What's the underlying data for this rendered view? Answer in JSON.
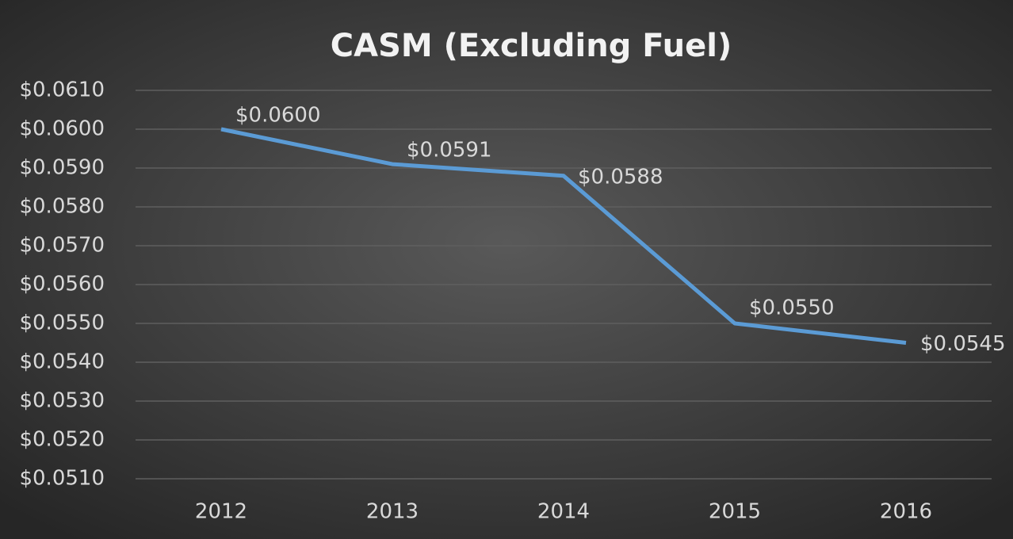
{
  "chart_data": {
    "type": "line",
    "title": "CASM (Excluding Fuel)",
    "categories": [
      "2012",
      "2013",
      "2014",
      "2015",
      "2016"
    ],
    "series": [
      {
        "color": "#5b9bd5",
        "values": [
          0.06,
          0.0591,
          0.0588,
          0.055,
          0.0545
        ],
        "value_labels": [
          "$0.0600",
          "$0.0591",
          "$0.0588",
          "$0.0550",
          "$0.0545"
        ]
      }
    ],
    "ylim": [
      0.051,
      0.061
    ],
    "yticks": [
      {
        "value": 0.051,
        "label": "$0.0510"
      },
      {
        "value": 0.052,
        "label": "$0.0520"
      },
      {
        "value": 0.053,
        "label": "$0.0530"
      },
      {
        "value": 0.054,
        "label": "$0.0540"
      },
      {
        "value": 0.055,
        "label": "$0.0550"
      },
      {
        "value": 0.056,
        "label": "$0.0560"
      },
      {
        "value": 0.057,
        "label": "$0.0570"
      },
      {
        "value": 0.058,
        "label": "$0.0580"
      },
      {
        "value": 0.059,
        "label": "$0.0590"
      },
      {
        "value": 0.06,
        "label": "$0.0600"
      },
      {
        "value": 0.061,
        "label": "$0.0610"
      }
    ],
    "grid": true
  }
}
